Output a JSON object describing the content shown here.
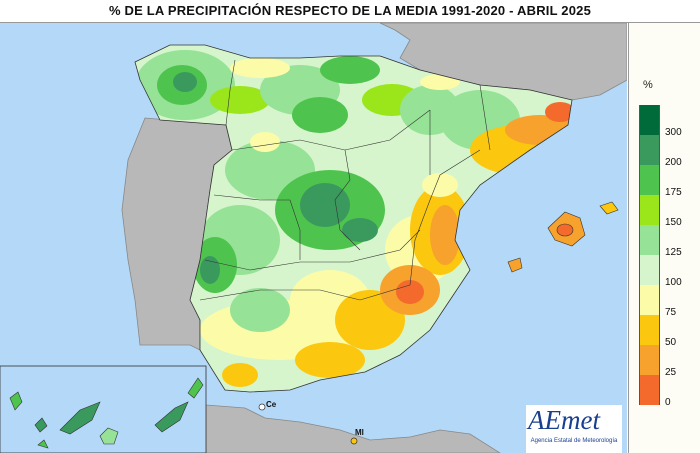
{
  "title": "% DE LA PRECIPITACIÓN RESPECTO DE LA MEDIA 1991-2020 - ABRIL 2025",
  "legend": {
    "unit": "%",
    "classes": [
      {
        "label": "300",
        "color": "#006b3a"
      },
      {
        "label": "200",
        "color": "#3a9a5e"
      },
      {
        "label": "175",
        "color": "#4ec44e"
      },
      {
        "label": "150",
        "color": "#9ae61a"
      },
      {
        "label": "125",
        "color": "#96e296"
      },
      {
        "label": "100",
        "color": "#d6f5cc"
      },
      {
        "label": "75",
        "color": "#fcfca8"
      },
      {
        "label": "50",
        "color": "#fbc70f"
      },
      {
        "label": "25",
        "color": "#f7a22c"
      },
      {
        "label": "0",
        "color": "#f46a2c"
      }
    ]
  },
  "map_labels": {
    "ceuta": "Ce",
    "melilla": "Ml"
  },
  "logo": {
    "word": "AEmet",
    "subtitle": "Agencia Estatal de Meteorología"
  },
  "colors": {
    "sea": "#b4d8f7",
    "neighbor_land": "#b8b8b8"
  }
}
